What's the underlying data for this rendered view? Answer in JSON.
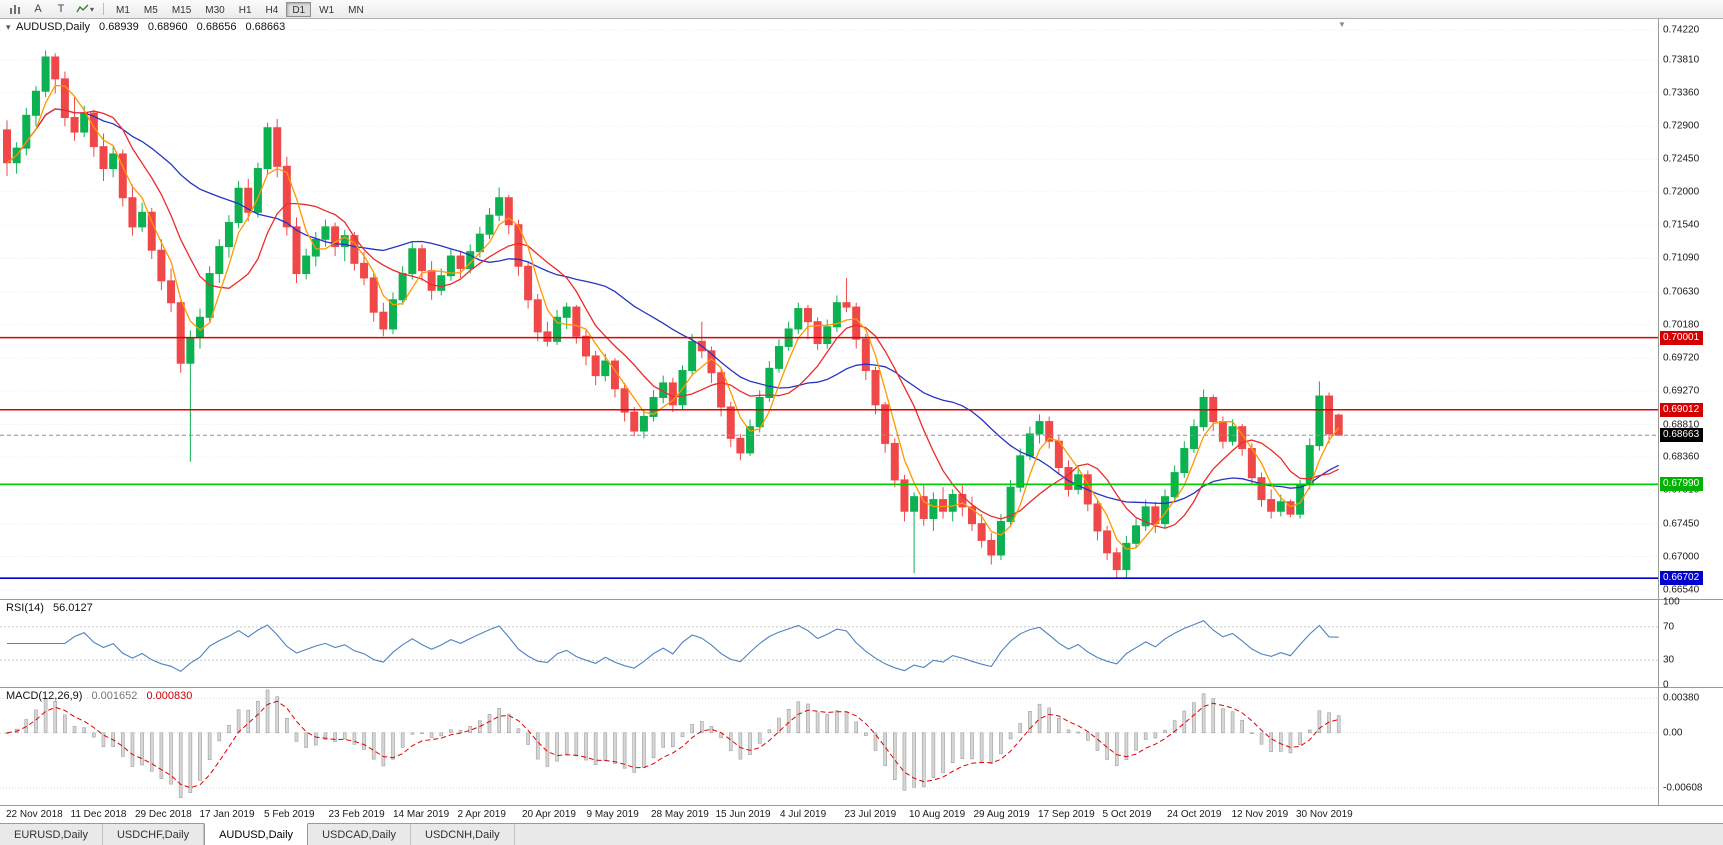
{
  "toolbar": {
    "letters": [
      "A",
      "T"
    ],
    "icon_names": [
      "bar-chart-icon",
      "text-tool-icon",
      "title-tool-icon",
      "line-studies-icon",
      "dropdown-caret-icon"
    ],
    "timeframes": [
      "M1",
      "M5",
      "M15",
      "M30",
      "H1",
      "H4",
      "D1",
      "W1",
      "MN"
    ],
    "active_timeframe": "D1"
  },
  "chart_header": {
    "symbol": "AUDUSD,Daily",
    "open": "0.68939",
    "high": "0.68960",
    "low": "0.68656",
    "close": "0.68663",
    "collapse_icon": "▾"
  },
  "indicators": {
    "rsi": {
      "name": "RSI(14)",
      "value": "56.0127",
      "ticks": [
        {
          "label": "100",
          "value": 100
        },
        {
          "label": "70",
          "value": 70
        },
        {
          "label": "30",
          "value": 30
        },
        {
          "label": "0",
          "value": 0
        }
      ],
      "level_lines": [
        70,
        30
      ],
      "color": "#4d82c4"
    },
    "macd": {
      "name": "MACD(12,26,9)",
      "value_main": "0.001652",
      "value_signal": "0.000830",
      "ticks": [
        {
          "label": "0.00380",
          "value": 0.0038
        },
        {
          "label": "0.00",
          "value": 0
        },
        {
          "label": "-0.00608",
          "value": -0.00608
        }
      ],
      "hist_fill": "#d6d6d6",
      "hist_stroke": "#9f9f9f",
      "signal_color": "#e00000"
    }
  },
  "chart_data": {
    "type": "candlestick",
    "title": "AUDUSD,Daily",
    "y_ticks": [
      "0.74220",
      "0.73810",
      "0.73360",
      "0.72900",
      "0.72450",
      "0.72000",
      "0.71540",
      "0.71090",
      "0.70630",
      "0.70180",
      "0.69720",
      "0.69270",
      "0.68810",
      "0.68360",
      "0.67910",
      "0.67450",
      "0.67000",
      "0.66540"
    ],
    "ylim": [
      0.6639,
      0.7435
    ],
    "x_labels": [
      "22 Nov 2018",
      "11 Dec 2018",
      "29 Dec 2018",
      "17 Jan 2019",
      "5 Feb 2019",
      "23 Feb 2019",
      "14 Mar 2019",
      "2 Apr 2019",
      "20 Apr 2019",
      "9 May 2019",
      "28 May 2019",
      "15 Jun 2019",
      "4 Jul 2019",
      "23 Jul 2019",
      "10 Aug 2019",
      "29 Aug 2019",
      "17 Sep 2019",
      "5 Oct 2019",
      "24 Oct 2019",
      "12 Nov 2019",
      "30 Nov 2019"
    ],
    "levels": [
      {
        "label": "0.70001",
        "value": 0.70001,
        "line_color": "#e00000",
        "tag_color": "#d40000"
      },
      {
        "label": "0.69012",
        "value": 0.69012,
        "line_color": "#e00000",
        "tag_color": "#d40000"
      },
      {
        "label": "0.67990",
        "value": 0.6799,
        "line_color": "#00cc00",
        "tag_color": "#00b300"
      },
      {
        "label": "0.66702",
        "value": 0.66702,
        "line_color": "#0000d0",
        "tag_color": "#0000cc"
      }
    ],
    "bid": {
      "label": "0.68663",
      "value": 0.68663,
      "tag_color": "#000000",
      "line_color": "#909090"
    },
    "colors": {
      "bull": "#0cb151",
      "bear": "#f04848",
      "ma_fast": "#ff9800",
      "ma_mid": "#ee2a2a",
      "ma_slow": "#2633c4",
      "grid": "#ebebeb"
    },
    "candles": [
      [
        0.7285,
        0.7298,
        0.7222,
        0.724
      ],
      [
        0.724,
        0.7268,
        0.7225,
        0.726
      ],
      [
        0.726,
        0.7315,
        0.725,
        0.7305
      ],
      [
        0.7305,
        0.7345,
        0.729,
        0.7338
      ],
      [
        0.7338,
        0.7394,
        0.733,
        0.7385
      ],
      [
        0.7385,
        0.739,
        0.7335,
        0.7355
      ],
      [
        0.7355,
        0.7365,
        0.729,
        0.7302
      ],
      [
        0.7302,
        0.733,
        0.727,
        0.7282
      ],
      [
        0.7282,
        0.7318,
        0.7275,
        0.7308
      ],
      [
        0.7308,
        0.7312,
        0.7248,
        0.7262
      ],
      [
        0.7262,
        0.728,
        0.7215,
        0.7232
      ],
      [
        0.7232,
        0.7262,
        0.722,
        0.7252
      ],
      [
        0.7252,
        0.7258,
        0.718,
        0.7192
      ],
      [
        0.7192,
        0.721,
        0.714,
        0.7152
      ],
      [
        0.7152,
        0.7185,
        0.7145,
        0.7172
      ],
      [
        0.7172,
        0.7178,
        0.7108,
        0.712
      ],
      [
        0.712,
        0.7135,
        0.7065,
        0.7078
      ],
      [
        0.7078,
        0.7095,
        0.7035,
        0.7048
      ],
      [
        0.7048,
        0.705,
        0.6952,
        0.6965
      ],
      [
        0.6965,
        0.701,
        0.683,
        0.7
      ],
      [
        0.7,
        0.704,
        0.6985,
        0.7028
      ],
      [
        0.7028,
        0.7098,
        0.702,
        0.7088
      ],
      [
        0.7088,
        0.7135,
        0.7075,
        0.7125
      ],
      [
        0.7125,
        0.7168,
        0.711,
        0.7158
      ],
      [
        0.7158,
        0.7215,
        0.715,
        0.7205
      ],
      [
        0.7205,
        0.7218,
        0.716,
        0.7172
      ],
      [
        0.7172,
        0.724,
        0.7165,
        0.7232
      ],
      [
        0.7232,
        0.7295,
        0.7225,
        0.7288
      ],
      [
        0.7288,
        0.73,
        0.722,
        0.7235
      ],
      [
        0.7235,
        0.7248,
        0.714,
        0.7152
      ],
      [
        0.7152,
        0.7165,
        0.7075,
        0.7088
      ],
      [
        0.7088,
        0.7122,
        0.708,
        0.7112
      ],
      [
        0.7112,
        0.7145,
        0.7098,
        0.7135
      ],
      [
        0.7135,
        0.7162,
        0.7125,
        0.7152
      ],
      [
        0.7152,
        0.7158,
        0.7112,
        0.7125
      ],
      [
        0.7125,
        0.7148,
        0.7105,
        0.714
      ],
      [
        0.714,
        0.7145,
        0.7092,
        0.7102
      ],
      [
        0.7102,
        0.7118,
        0.7072,
        0.7082
      ],
      [
        0.7082,
        0.7088,
        0.7022,
        0.7035
      ],
      [
        0.7035,
        0.7048,
        0.7002,
        0.7012
      ],
      [
        0.7012,
        0.7062,
        0.7005,
        0.7052
      ],
      [
        0.7052,
        0.7098,
        0.7045,
        0.7088
      ],
      [
        0.7088,
        0.7132,
        0.708,
        0.7122
      ],
      [
        0.7122,
        0.7128,
        0.7078,
        0.7092
      ],
      [
        0.7092,
        0.7105,
        0.7052,
        0.7065
      ],
      [
        0.7065,
        0.7095,
        0.7058,
        0.7085
      ],
      [
        0.7085,
        0.7122,
        0.7078,
        0.7112
      ],
      [
        0.7112,
        0.7118,
        0.7082,
        0.7095
      ],
      [
        0.7095,
        0.7128,
        0.7088,
        0.7118
      ],
      [
        0.7118,
        0.7152,
        0.711,
        0.7142
      ],
      [
        0.7142,
        0.7178,
        0.7135,
        0.7168
      ],
      [
        0.7168,
        0.7206,
        0.716,
        0.7192
      ],
      [
        0.7192,
        0.7196,
        0.7142,
        0.7155
      ],
      [
        0.7155,
        0.7162,
        0.7085,
        0.7098
      ],
      [
        0.7098,
        0.7105,
        0.704,
        0.7052
      ],
      [
        0.7052,
        0.706,
        0.6995,
        0.7008
      ],
      [
        0.7008,
        0.7022,
        0.6988,
        0.6995
      ],
      [
        0.6995,
        0.7038,
        0.699,
        0.7028
      ],
      [
        0.7028,
        0.7048,
        0.7012,
        0.7042
      ],
      [
        0.7042,
        0.7045,
        0.6992,
        0.7002
      ],
      [
        0.7002,
        0.701,
        0.6962,
        0.6975
      ],
      [
        0.6975,
        0.6982,
        0.6935,
        0.6948
      ],
      [
        0.6948,
        0.6978,
        0.694,
        0.6968
      ],
      [
        0.6968,
        0.6972,
        0.6918,
        0.693
      ],
      [
        0.693,
        0.6938,
        0.6885,
        0.6898
      ],
      [
        0.6898,
        0.6905,
        0.6865,
        0.6872
      ],
      [
        0.6872,
        0.6902,
        0.6862,
        0.6892
      ],
      [
        0.6892,
        0.6928,
        0.6885,
        0.6918
      ],
      [
        0.6918,
        0.6948,
        0.691,
        0.6938
      ],
      [
        0.6938,
        0.6945,
        0.6898,
        0.6908
      ],
      [
        0.6908,
        0.6962,
        0.6902,
        0.6955
      ],
      [
        0.6955,
        0.7005,
        0.6948,
        0.6995
      ],
      [
        0.6995,
        0.7022,
        0.6972,
        0.6982
      ],
      [
        0.6982,
        0.6988,
        0.6938,
        0.6952
      ],
      [
        0.6952,
        0.6958,
        0.6892,
        0.6905
      ],
      [
        0.6905,
        0.6912,
        0.685,
        0.6862
      ],
      [
        0.6862,
        0.6868,
        0.6832,
        0.6842
      ],
      [
        0.6842,
        0.6888,
        0.6838,
        0.6878
      ],
      [
        0.6878,
        0.6928,
        0.687,
        0.6918
      ],
      [
        0.6918,
        0.6968,
        0.6912,
        0.6958
      ],
      [
        0.6958,
        0.6998,
        0.6952,
        0.6988
      ],
      [
        0.6988,
        0.7022,
        0.6982,
        0.7012
      ],
      [
        0.7012,
        0.7048,
        0.7005,
        0.704
      ],
      [
        0.704,
        0.7045,
        0.6998,
        0.7022
      ],
      [
        0.7022,
        0.7028,
        0.6983,
        0.6992
      ],
      [
        0.6992,
        0.7025,
        0.6985,
        0.7015
      ],
      [
        0.7015,
        0.7058,
        0.7008,
        0.7048
      ],
      [
        0.7048,
        0.7082,
        0.7035,
        0.7042
      ],
      [
        0.7042,
        0.7048,
        0.6985,
        0.6998
      ],
      [
        0.6998,
        0.7005,
        0.6942,
        0.6955
      ],
      [
        0.6955,
        0.696,
        0.6895,
        0.6908
      ],
      [
        0.6908,
        0.6912,
        0.6842,
        0.6855
      ],
      [
        0.6855,
        0.6862,
        0.6795,
        0.6805
      ],
      [
        0.6805,
        0.6812,
        0.6748,
        0.6762
      ],
      [
        0.6762,
        0.6788,
        0.6677,
        0.6782
      ],
      [
        0.6782,
        0.6798,
        0.6742,
        0.6752
      ],
      [
        0.6752,
        0.6788,
        0.6735,
        0.6778
      ],
      [
        0.6778,
        0.6795,
        0.6752,
        0.6762
      ],
      [
        0.6762,
        0.6792,
        0.6748,
        0.6785
      ],
      [
        0.6785,
        0.6798,
        0.6755,
        0.6768
      ],
      [
        0.6768,
        0.6782,
        0.6735,
        0.6745
      ],
      [
        0.6745,
        0.6758,
        0.6712,
        0.6722
      ],
      [
        0.6722,
        0.6732,
        0.6689,
        0.6702
      ],
      [
        0.6702,
        0.6758,
        0.6695,
        0.6748
      ],
      [
        0.6748,
        0.6805,
        0.6742,
        0.6795
      ],
      [
        0.6795,
        0.6848,
        0.6788,
        0.6838
      ],
      [
        0.6838,
        0.6878,
        0.6832,
        0.6868
      ],
      [
        0.6868,
        0.6895,
        0.6855,
        0.6885
      ],
      [
        0.6885,
        0.6892,
        0.6848,
        0.6858
      ],
      [
        0.6858,
        0.6865,
        0.6812,
        0.6822
      ],
      [
        0.6822,
        0.6832,
        0.6782,
        0.6792
      ],
      [
        0.6792,
        0.6825,
        0.6785,
        0.6812
      ],
      [
        0.6812,
        0.6818,
        0.6762,
        0.6772
      ],
      [
        0.6772,
        0.6778,
        0.6722,
        0.6735
      ],
      [
        0.6735,
        0.6742,
        0.6695,
        0.6705
      ],
      [
        0.6705,
        0.6712,
        0.667,
        0.6682
      ],
      [
        0.6682,
        0.6728,
        0.6671,
        0.6718
      ],
      [
        0.6718,
        0.6752,
        0.6712,
        0.6742
      ],
      [
        0.6742,
        0.6778,
        0.6735,
        0.6768
      ],
      [
        0.6768,
        0.6775,
        0.6732,
        0.6745
      ],
      [
        0.6745,
        0.6792,
        0.6738,
        0.6782
      ],
      [
        0.6782,
        0.6825,
        0.6775,
        0.6815
      ],
      [
        0.6815,
        0.6858,
        0.6808,
        0.6848
      ],
      [
        0.6848,
        0.6888,
        0.6842,
        0.6878
      ],
      [
        0.6878,
        0.6929,
        0.6872,
        0.6918
      ],
      [
        0.6918,
        0.6922,
        0.6872,
        0.6885
      ],
      [
        0.6885,
        0.6892,
        0.6848,
        0.6858
      ],
      [
        0.6858,
        0.6888,
        0.6852,
        0.6878
      ],
      [
        0.6878,
        0.6882,
        0.6838,
        0.6848
      ],
      [
        0.6848,
        0.6855,
        0.6798,
        0.6808
      ],
      [
        0.6808,
        0.6815,
        0.6768,
        0.6778
      ],
      [
        0.6778,
        0.6792,
        0.6752,
        0.6762
      ],
      [
        0.6762,
        0.6785,
        0.6755,
        0.6775
      ],
      [
        0.6775,
        0.6778,
        0.6754,
        0.6758
      ],
      [
        0.6758,
        0.6805,
        0.6752,
        0.6798
      ],
      [
        0.6798,
        0.6862,
        0.6792,
        0.6852
      ],
      [
        0.6852,
        0.694,
        0.6845,
        0.692
      ],
      [
        0.692,
        0.6925,
        0.6855,
        0.6868
      ],
      [
        0.68939,
        0.6896,
        0.68656,
        0.68663
      ]
    ]
  },
  "tabs": {
    "items": [
      "EURUSD,Daily",
      "USDCHF,Daily",
      "AUDUSD,Daily",
      "USDCAD,Daily",
      "USDCNH,Daily"
    ],
    "active": "AUDUSD,Daily"
  },
  "icons": {
    "shift_marker": "▼"
  }
}
